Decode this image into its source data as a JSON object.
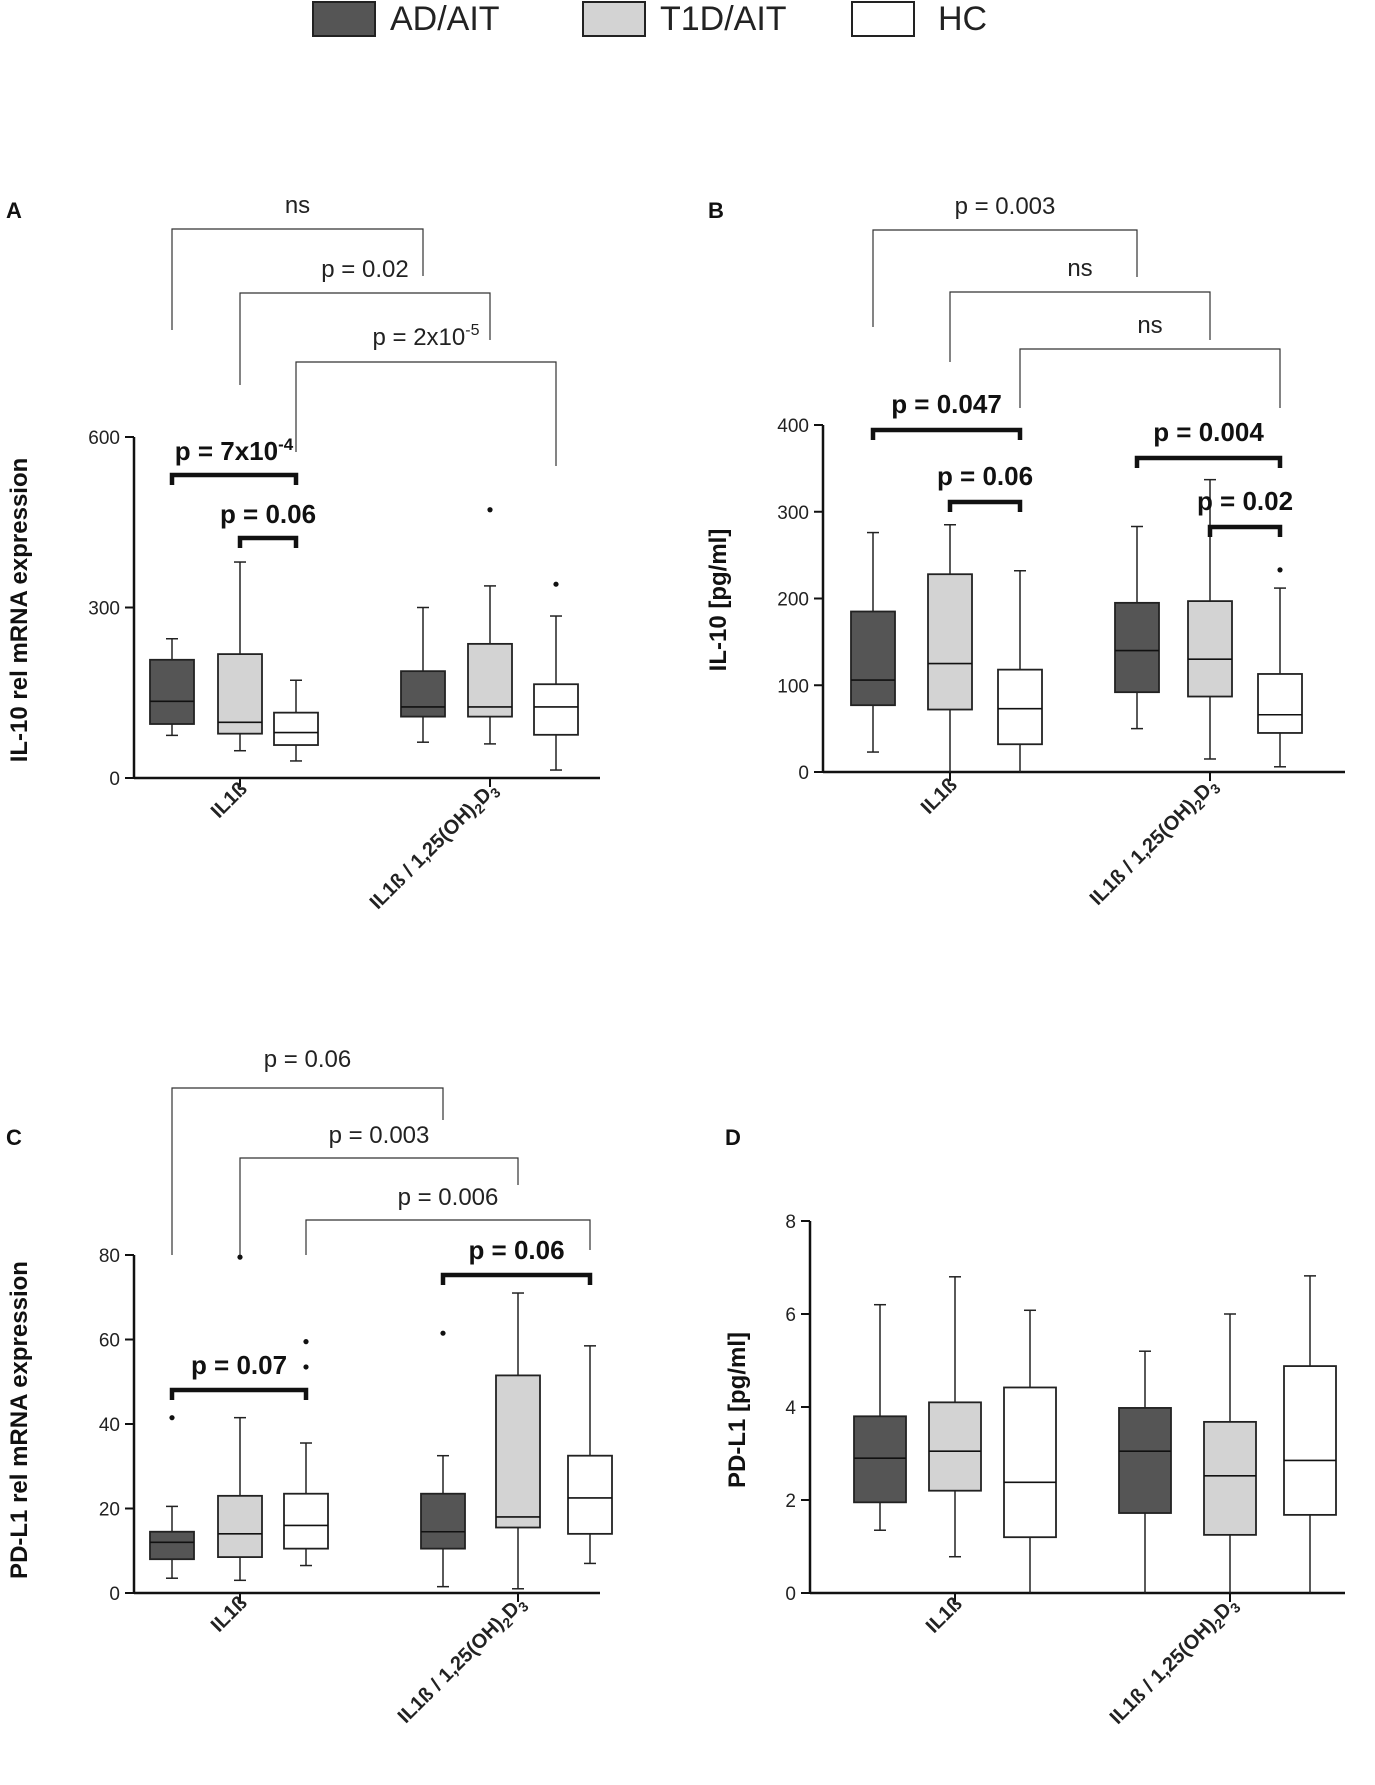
{
  "legend": [
    {
      "label": "AD/AIT",
      "fill": "#555555"
    },
    {
      "label": "T1D/AIT",
      "fill": "#d3d3d3"
    },
    {
      "label": "HC",
      "fill": "#ffffff"
    }
  ],
  "chart_data": [
    {
      "panel": "A",
      "type": "box",
      "ylabel": "IL-10 rel mRNA expression",
      "ylim": [
        0,
        600
      ],
      "yticks": [
        0,
        300,
        600
      ],
      "categories": [
        "IL1ß",
        "IL1ß / 1,25(OH)2D3"
      ],
      "groups": [
        "AD/AIT",
        "T1D/AIT",
        "HC"
      ],
      "boxes": [
        {
          "cat": 0,
          "group": 0,
          "min": 75,
          "q1": 95,
          "median": 135,
          "q3": 208,
          "max": 245,
          "outliers": []
        },
        {
          "cat": 0,
          "group": 1,
          "min": 48,
          "q1": 78,
          "median": 98,
          "q3": 218,
          "max": 380,
          "outliers": []
        },
        {
          "cat": 0,
          "group": 2,
          "min": 30,
          "q1": 58,
          "median": 80,
          "q3": 115,
          "max": 172,
          "outliers": []
        },
        {
          "cat": 1,
          "group": 0,
          "min": 63,
          "q1": 108,
          "median": 125,
          "q3": 188,
          "max": 300,
          "outliers": []
        },
        {
          "cat": 1,
          "group": 1,
          "min": 60,
          "q1": 108,
          "median": 125,
          "q3": 236,
          "max": 338,
          "outliers": [
            472
          ]
        },
        {
          "cat": 1,
          "group": 2,
          "min": 14,
          "q1": 76,
          "median": 125,
          "q3": 165,
          "max": 285,
          "outliers": [
            341
          ]
        }
      ],
      "brackets": [
        {
          "from": [
            0,
            0
          ],
          "to": [
            1,
            0
          ],
          "label": "ns",
          "style": "thin"
        },
        {
          "from": [
            0,
            1
          ],
          "to": [
            1,
            1
          ],
          "label": "p = 0.02",
          "style": "thin"
        },
        {
          "from": [
            0,
            2
          ],
          "to": [
            1,
            2
          ],
          "label": "p = 2x10",
          "sup": "-5",
          "style": "thin"
        },
        {
          "from": [
            0,
            0
          ],
          "to": [
            0,
            2
          ],
          "label": "p = 7x10",
          "sup": "-4",
          "style": "bold"
        },
        {
          "from": [
            0,
            1
          ],
          "to": [
            0,
            2
          ],
          "label": "p = 0.06",
          "style": "bold"
        }
      ]
    },
    {
      "panel": "B",
      "type": "box",
      "ylabel": "IL-10 [pg/ml]",
      "ylim": [
        0,
        400
      ],
      "yticks": [
        0,
        100,
        200,
        300,
        400
      ],
      "categories": [
        "IL1ß",
        "IL1ß / 1,25(OH)2D3"
      ],
      "groups": [
        "AD/AIT",
        "T1D/AIT",
        "HC"
      ],
      "boxes": [
        {
          "cat": 0,
          "group": 0,
          "min": 23,
          "q1": 77,
          "median": 106,
          "q3": 185,
          "max": 276,
          "outliers": []
        },
        {
          "cat": 0,
          "group": 1,
          "min": 0,
          "q1": 72,
          "median": 125,
          "q3": 228,
          "max": 285,
          "outliers": []
        },
        {
          "cat": 0,
          "group": 2,
          "min": 0,
          "q1": 32,
          "median": 73,
          "q3": 118,
          "max": 232,
          "outliers": []
        },
        {
          "cat": 1,
          "group": 0,
          "min": 50,
          "q1": 92,
          "median": 140,
          "q3": 195,
          "max": 283,
          "outliers": []
        },
        {
          "cat": 1,
          "group": 1,
          "min": 15,
          "q1": 87,
          "median": 130,
          "q3": 197,
          "max": 337,
          "outliers": []
        },
        {
          "cat": 1,
          "group": 2,
          "min": 6,
          "q1": 45,
          "median": 66,
          "q3": 113,
          "max": 212,
          "outliers": [
            233
          ]
        }
      ],
      "brackets": [
        {
          "from": [
            0,
            0
          ],
          "to": [
            1,
            0
          ],
          "label": "p = 0.003",
          "style": "thin"
        },
        {
          "from": [
            0,
            1
          ],
          "to": [
            1,
            1
          ],
          "label": "ns",
          "style": "thin"
        },
        {
          "from": [
            0,
            2
          ],
          "to": [
            1,
            2
          ],
          "label": "ns",
          "style": "thin"
        },
        {
          "from": [
            0,
            0
          ],
          "to": [
            0,
            2
          ],
          "label": "p = 0.047",
          "style": "bold"
        },
        {
          "from": [
            0,
            1
          ],
          "to": [
            0,
            2
          ],
          "label": "p = 0.06",
          "style": "bold"
        },
        {
          "from": [
            1,
            0
          ],
          "to": [
            1,
            2
          ],
          "label": "p = 0.004",
          "style": "bold"
        },
        {
          "from": [
            1,
            1
          ],
          "to": [
            1,
            2
          ],
          "label": "p = 0.02",
          "style": "bold"
        }
      ]
    },
    {
      "panel": "C",
      "type": "box",
      "ylabel": "PD-L1 rel mRNA expression",
      "ylim": [
        0,
        80
      ],
      "yticks": [
        0,
        20,
        40,
        60,
        80
      ],
      "categories": [
        "IL1ß",
        "IL1ß / 1,25(OH)2D3"
      ],
      "groups": [
        "AD/AIT",
        "T1D/AIT",
        "HC"
      ],
      "boxes": [
        {
          "cat": 0,
          "group": 0,
          "min": 3.5,
          "q1": 8,
          "median": 12,
          "q3": 14.5,
          "max": 20.5,
          "outliers": [
            41.5
          ]
        },
        {
          "cat": 0,
          "group": 1,
          "min": 3,
          "q1": 8.5,
          "median": 14,
          "q3": 23,
          "max": 41.5,
          "outliers": [
            79.5
          ]
        },
        {
          "cat": 0,
          "group": 2,
          "min": 6.5,
          "q1": 10.5,
          "median": 16,
          "q3": 23.5,
          "max": 35.5,
          "outliers": [
            53.5,
            59.5
          ]
        },
        {
          "cat": 1,
          "group": 0,
          "min": 1.5,
          "q1": 10.5,
          "median": 14.5,
          "q3": 23.5,
          "max": 32.5,
          "outliers": [
            61.5
          ]
        },
        {
          "cat": 1,
          "group": 1,
          "min": 1,
          "q1": 15.5,
          "median": 18,
          "q3": 51.5,
          "max": 71,
          "outliers": []
        },
        {
          "cat": 1,
          "group": 2,
          "min": 7,
          "q1": 14,
          "median": 22.5,
          "q3": 32.5,
          "max": 58.5,
          "outliers": []
        }
      ],
      "brackets": [
        {
          "from": [
            0,
            0
          ],
          "to": [
            1,
            0
          ],
          "label": "p = 0.06",
          "style": "thin"
        },
        {
          "from": [
            0,
            1
          ],
          "to": [
            1,
            1
          ],
          "label": "p = 0.003",
          "style": "thin"
        },
        {
          "from": [
            0,
            2
          ],
          "to": [
            1,
            2
          ],
          "label": "p = 0.006",
          "style": "thin"
        },
        {
          "from": [
            0,
            0
          ],
          "to": [
            0,
            2
          ],
          "label": "p = 0.07",
          "style": "bold"
        },
        {
          "from": [
            1,
            0
          ],
          "to": [
            1,
            2
          ],
          "label": "p = 0.06",
          "style": "bold"
        }
      ]
    },
    {
      "panel": "D",
      "type": "box",
      "ylabel": "PD-L1 [pg/ml]",
      "ylim": [
        0,
        8
      ],
      "yticks": [
        0,
        2,
        4,
        6,
        8
      ],
      "categories": [
        "IL1ß",
        "IL1ß / 1,25(OH)2D3"
      ],
      "groups": [
        "AD/AIT",
        "T1D/AIT",
        "HC"
      ],
      "boxes": [
        {
          "cat": 0,
          "group": 0,
          "min": 1.35,
          "q1": 1.95,
          "median": 2.9,
          "q3": 3.8,
          "max": 6.2,
          "outliers": []
        },
        {
          "cat": 0,
          "group": 1,
          "min": 0.78,
          "q1": 2.2,
          "median": 3.05,
          "q3": 4.1,
          "max": 6.8,
          "outliers": []
        },
        {
          "cat": 0,
          "group": 2,
          "min": 0,
          "q1": 1.2,
          "median": 2.38,
          "q3": 4.42,
          "max": 6.08,
          "outliers": []
        },
        {
          "cat": 1,
          "group": 0,
          "min": 0,
          "q1": 1.72,
          "median": 3.05,
          "q3": 3.98,
          "max": 5.2,
          "outliers": []
        },
        {
          "cat": 1,
          "group": 1,
          "min": 0,
          "q1": 1.25,
          "median": 2.52,
          "q3": 3.68,
          "max": 6.0,
          "outliers": []
        },
        {
          "cat": 1,
          "group": 2,
          "min": 0,
          "q1": 1.68,
          "median": 2.85,
          "q3": 4.88,
          "max": 6.82,
          "outliers": []
        }
      ],
      "brackets": []
    }
  ]
}
